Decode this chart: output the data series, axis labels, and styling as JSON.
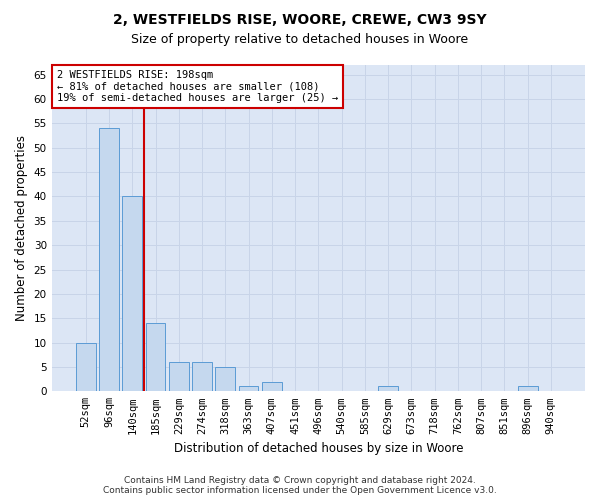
{
  "title1": "2, WESTFIELDS RISE, WOORE, CREWE, CW3 9SY",
  "title2": "Size of property relative to detached houses in Woore",
  "xlabel": "Distribution of detached houses by size in Woore",
  "ylabel": "Number of detached properties",
  "categories": [
    "52sqm",
    "96sqm",
    "140sqm",
    "185sqm",
    "229sqm",
    "274sqm",
    "318sqm",
    "363sqm",
    "407sqm",
    "451sqm",
    "496sqm",
    "540sqm",
    "585sqm",
    "629sqm",
    "673sqm",
    "718sqm",
    "762sqm",
    "807sqm",
    "851sqm",
    "896sqm",
    "940sqm"
  ],
  "values": [
    10,
    54,
    40,
    14,
    6,
    6,
    5,
    1,
    2,
    0,
    0,
    0,
    0,
    1,
    0,
    0,
    0,
    0,
    0,
    1,
    0
  ],
  "bar_color": "#c5d8ee",
  "bar_edge_color": "#5b9bd5",
  "vline_color": "#cc0000",
  "annotation_text": "2 WESTFIELDS RISE: 198sqm\n← 81% of detached houses are smaller (108)\n19% of semi-detached houses are larger (25) →",
  "annotation_box_color": "#ffffff",
  "annotation_box_edge_color": "#cc0000",
  "ylim": [
    0,
    67
  ],
  "yticks": [
    0,
    5,
    10,
    15,
    20,
    25,
    30,
    35,
    40,
    45,
    50,
    55,
    60,
    65
  ],
  "grid_color": "#c8d4e8",
  "background_color": "#dce6f5",
  "footer": "Contains HM Land Registry data © Crown copyright and database right 2024.\nContains public sector information licensed under the Open Government Licence v3.0.",
  "title1_fontsize": 10,
  "title2_fontsize": 9,
  "xlabel_fontsize": 8.5,
  "ylabel_fontsize": 8.5,
  "tick_fontsize": 7.5,
  "annotation_fontsize": 7.5,
  "footer_fontsize": 6.5
}
